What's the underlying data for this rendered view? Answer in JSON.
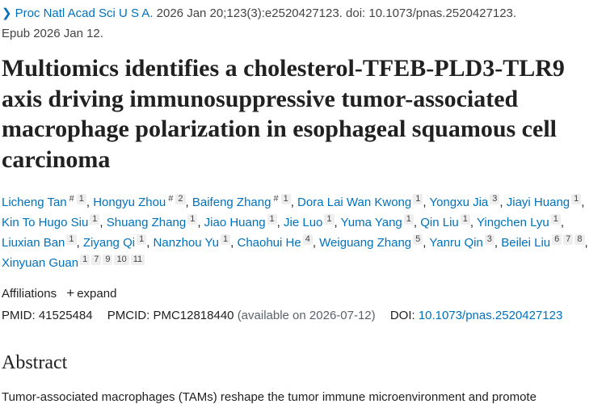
{
  "citation": {
    "journal": "Proc Natl Acad Sci U S A.",
    "details": " 2026 Jan 20;123(3):e2520427123. doi: 10.1073/pnas.2520427123.",
    "epub": "Epub 2026 Jan 12."
  },
  "title": "Multiomics identifies a cholesterol-TFEB-PLD3-TLR9 axis driving immunosuppressive tumor-associated macrophage polarization in esophageal squamous cell carcinoma",
  "authors": [
    {
      "name": "Licheng Tan",
      "sups": [
        "#",
        "1"
      ]
    },
    {
      "name": "Hongyu Zhou",
      "sups": [
        "#",
        "2"
      ]
    },
    {
      "name": "Baifeng Zhang",
      "sups": [
        "#",
        "1"
      ]
    },
    {
      "name": "Dora Lai Wan Kwong",
      "sups": [
        "1"
      ]
    },
    {
      "name": "Yongxu Jia",
      "sups": [
        "3"
      ]
    },
    {
      "name": "Jiayi Huang",
      "sups": [
        "1"
      ]
    },
    {
      "name": "Kin To Hugo Siu",
      "sups": [
        "1"
      ]
    },
    {
      "name": "Shuang Zhang",
      "sups": [
        "1"
      ]
    },
    {
      "name": "Jiao Huang",
      "sups": [
        "1"
      ]
    },
    {
      "name": "Jie Luo",
      "sups": [
        "1"
      ]
    },
    {
      "name": "Yuma Yang",
      "sups": [
        "1"
      ]
    },
    {
      "name": "Qin Liu",
      "sups": [
        "1"
      ]
    },
    {
      "name": "Yingchen Lyu",
      "sups": [
        "1"
      ]
    },
    {
      "name": "Liuxian Ban",
      "sups": [
        "1"
      ]
    },
    {
      "name": "Ziyang Qi",
      "sups": [
        "1"
      ]
    },
    {
      "name": "Nanzhou Yu",
      "sups": [
        "1"
      ]
    },
    {
      "name": "Chaohui He",
      "sups": [
        "4"
      ]
    },
    {
      "name": "Weiguang Zhang",
      "sups": [
        "5"
      ]
    },
    {
      "name": "Yanru Qin",
      "sups": [
        "3"
      ]
    },
    {
      "name": "Beilei Liu",
      "sups": [
        "6",
        "7",
        "8"
      ]
    },
    {
      "name": "Xinyuan Guan",
      "sups": [
        "1",
        "7",
        "9",
        "10",
        "11"
      ]
    }
  ],
  "affiliations": {
    "label": "Affiliations",
    "expand": "expand"
  },
  "ids": {
    "pmid_label": "PMID:",
    "pmid": "41525484",
    "pmcid_label": "PMCID:",
    "pmcid": "PMC12818440",
    "pmcid_note": "(available on 2026-07-12)",
    "doi_label": "DOI:",
    "doi": "10.1073/pnas.2520427123"
  },
  "abstract": {
    "heading": "Abstract",
    "text": "Tumor-associated macrophages (TAMs) reshape the tumor immune microenvironment and promote"
  },
  "colors": {
    "link": "#0071bc",
    "text": "#212121"
  }
}
